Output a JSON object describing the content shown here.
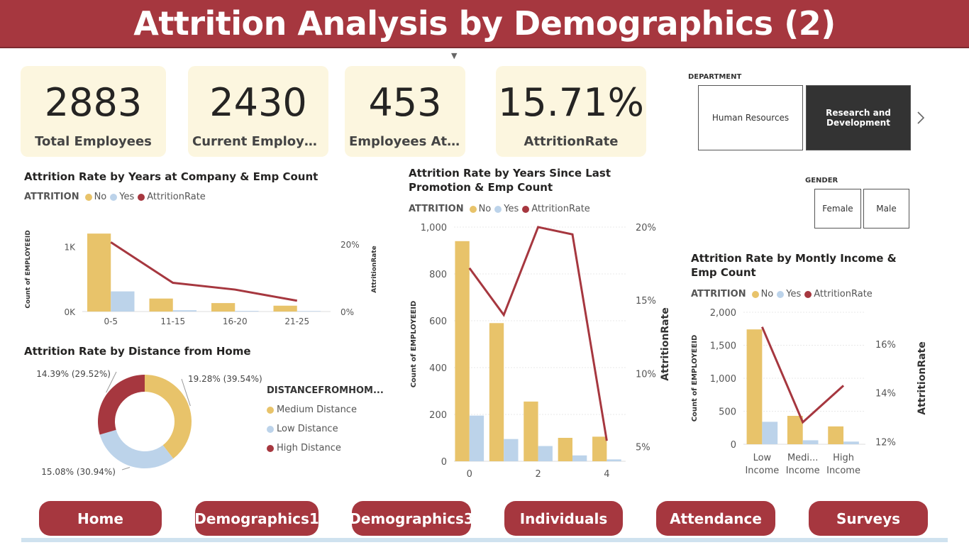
{
  "title": "Attrition Analysis by Demographics (2)",
  "colors": {
    "brand": "#a6373f",
    "no": "#e8c36a",
    "yes": "#bcd3ea",
    "rate": "#a6373f",
    "kpi_bg": "#fcf6df"
  },
  "kpis": [
    {
      "value": "2883",
      "label": "Total Employees"
    },
    {
      "value": "2430",
      "label": "Current Employees..."
    },
    {
      "value": "453",
      "label": "Employees Attr..."
    },
    {
      "value": "15.71%",
      "label": "AttritionRate"
    }
  ],
  "department_slicer": {
    "title": "DEPARTMENT",
    "options": [
      {
        "label": "Human Resources",
        "selected": false
      },
      {
        "label": "Research and Development",
        "selected": true
      }
    ],
    "next_icon": "chevron-right-icon"
  },
  "gender_slicer": {
    "title": "GENDER",
    "options": [
      "Female",
      "Male"
    ]
  },
  "legend": {
    "title": "ATTRITION",
    "no": "No",
    "yes": "Yes",
    "rate": "AttritionRate"
  },
  "donut_legend_title": "DISTANCEFROMHOM...",
  "nav": [
    "Home",
    "Demographics1",
    "Demographics3",
    "Individuals",
    "Attendance",
    "Surveys"
  ],
  "chart_data": [
    {
      "type": "bar",
      "id": "years_at_company",
      "title": "Attrition Rate by Years at Company & Emp Count",
      "categories": [
        "0-5",
        "11-15",
        "16-20",
        "21-25"
      ],
      "series": [
        {
          "name": "No",
          "values": [
            1200,
            200,
            130,
            90
          ]
        },
        {
          "name": "Yes",
          "values": [
            310,
            20,
            10,
            8
          ]
        },
        {
          "name": "AttritionRate",
          "kind": "line",
          "axis": "right",
          "values": [
            20.5,
            8.5,
            6.5,
            3.2
          ]
        }
      ],
      "ylabel": "Count of EMPLOYEEID",
      "y2label": "AttritionRate",
      "yticks": [
        "0K",
        "1K"
      ],
      "y2ticks": [
        "0%",
        "20%"
      ],
      "ylim": [
        0,
        1300
      ],
      "y2lim": [
        0,
        25
      ]
    },
    {
      "type": "bar",
      "id": "years_since_promotion",
      "title": "Attrition Rate by Years Since Last Promotion & Emp Count",
      "categories": [
        "0",
        "1",
        "2",
        "3",
        "4"
      ],
      "xticks": [
        "0",
        "2",
        "4"
      ],
      "series": [
        {
          "name": "No",
          "values": [
            940,
            590,
            255,
            100,
            105
          ]
        },
        {
          "name": "Yes",
          "values": [
            195,
            95,
            65,
            25,
            8
          ]
        },
        {
          "name": "AttritionRate",
          "kind": "line",
          "axis": "right",
          "values": [
            17.2,
            14.0,
            20.0,
            19.5,
            5.4
          ]
        }
      ],
      "ylabel": "Count of EMPLOYEEID",
      "y2label": "AttritionRate",
      "yticks": [
        "0",
        "200",
        "400",
        "600",
        "800",
        "1,000"
      ],
      "y2ticks": [
        "5%",
        "10%",
        "15%",
        "20%"
      ],
      "ylim": [
        0,
        1000
      ],
      "y2lim": [
        4,
        20
      ]
    },
    {
      "type": "bar",
      "id": "monthly_income",
      "title": "Attrition Rate by Montly Income & Emp Count",
      "categories": [
        "Low Income",
        "Medi... Income",
        "High Income"
      ],
      "category_lines": [
        [
          "Low",
          "Income"
        ],
        [
          "Medi...",
          "Income"
        ],
        [
          "High",
          "Income"
        ]
      ],
      "series": [
        {
          "name": "No",
          "values": [
            1740,
            430,
            270
          ]
        },
        {
          "name": "Yes",
          "values": [
            340,
            60,
            40
          ]
        },
        {
          "name": "AttritionRate",
          "kind": "line",
          "axis": "right",
          "values": [
            16.7,
            12.8,
            14.3
          ]
        }
      ],
      "ylabel": "Count of EMPLOYEEID",
      "y2label": "AttritionRate",
      "yticks": [
        "0",
        "500",
        "1,000",
        "1,500",
        "2,000"
      ],
      "y2ticks": [
        "12%",
        "14%",
        "16%"
      ],
      "ylim": [
        0,
        2000
      ],
      "y2lim": [
        11.9,
        17.3
      ]
    },
    {
      "type": "pie",
      "id": "distance_from_home",
      "title": "Attrition Rate by Distance from Home",
      "slices": [
        {
          "name": "Medium Distance",
          "value": 39.54,
          "label": "19.28% (39.54%)"
        },
        {
          "name": "Low Distance",
          "value": 30.94,
          "label": "15.08% (30.94%)"
        },
        {
          "name": "High Distance",
          "value": 29.52,
          "label": "14.39% (29.52%)"
        }
      ]
    }
  ]
}
